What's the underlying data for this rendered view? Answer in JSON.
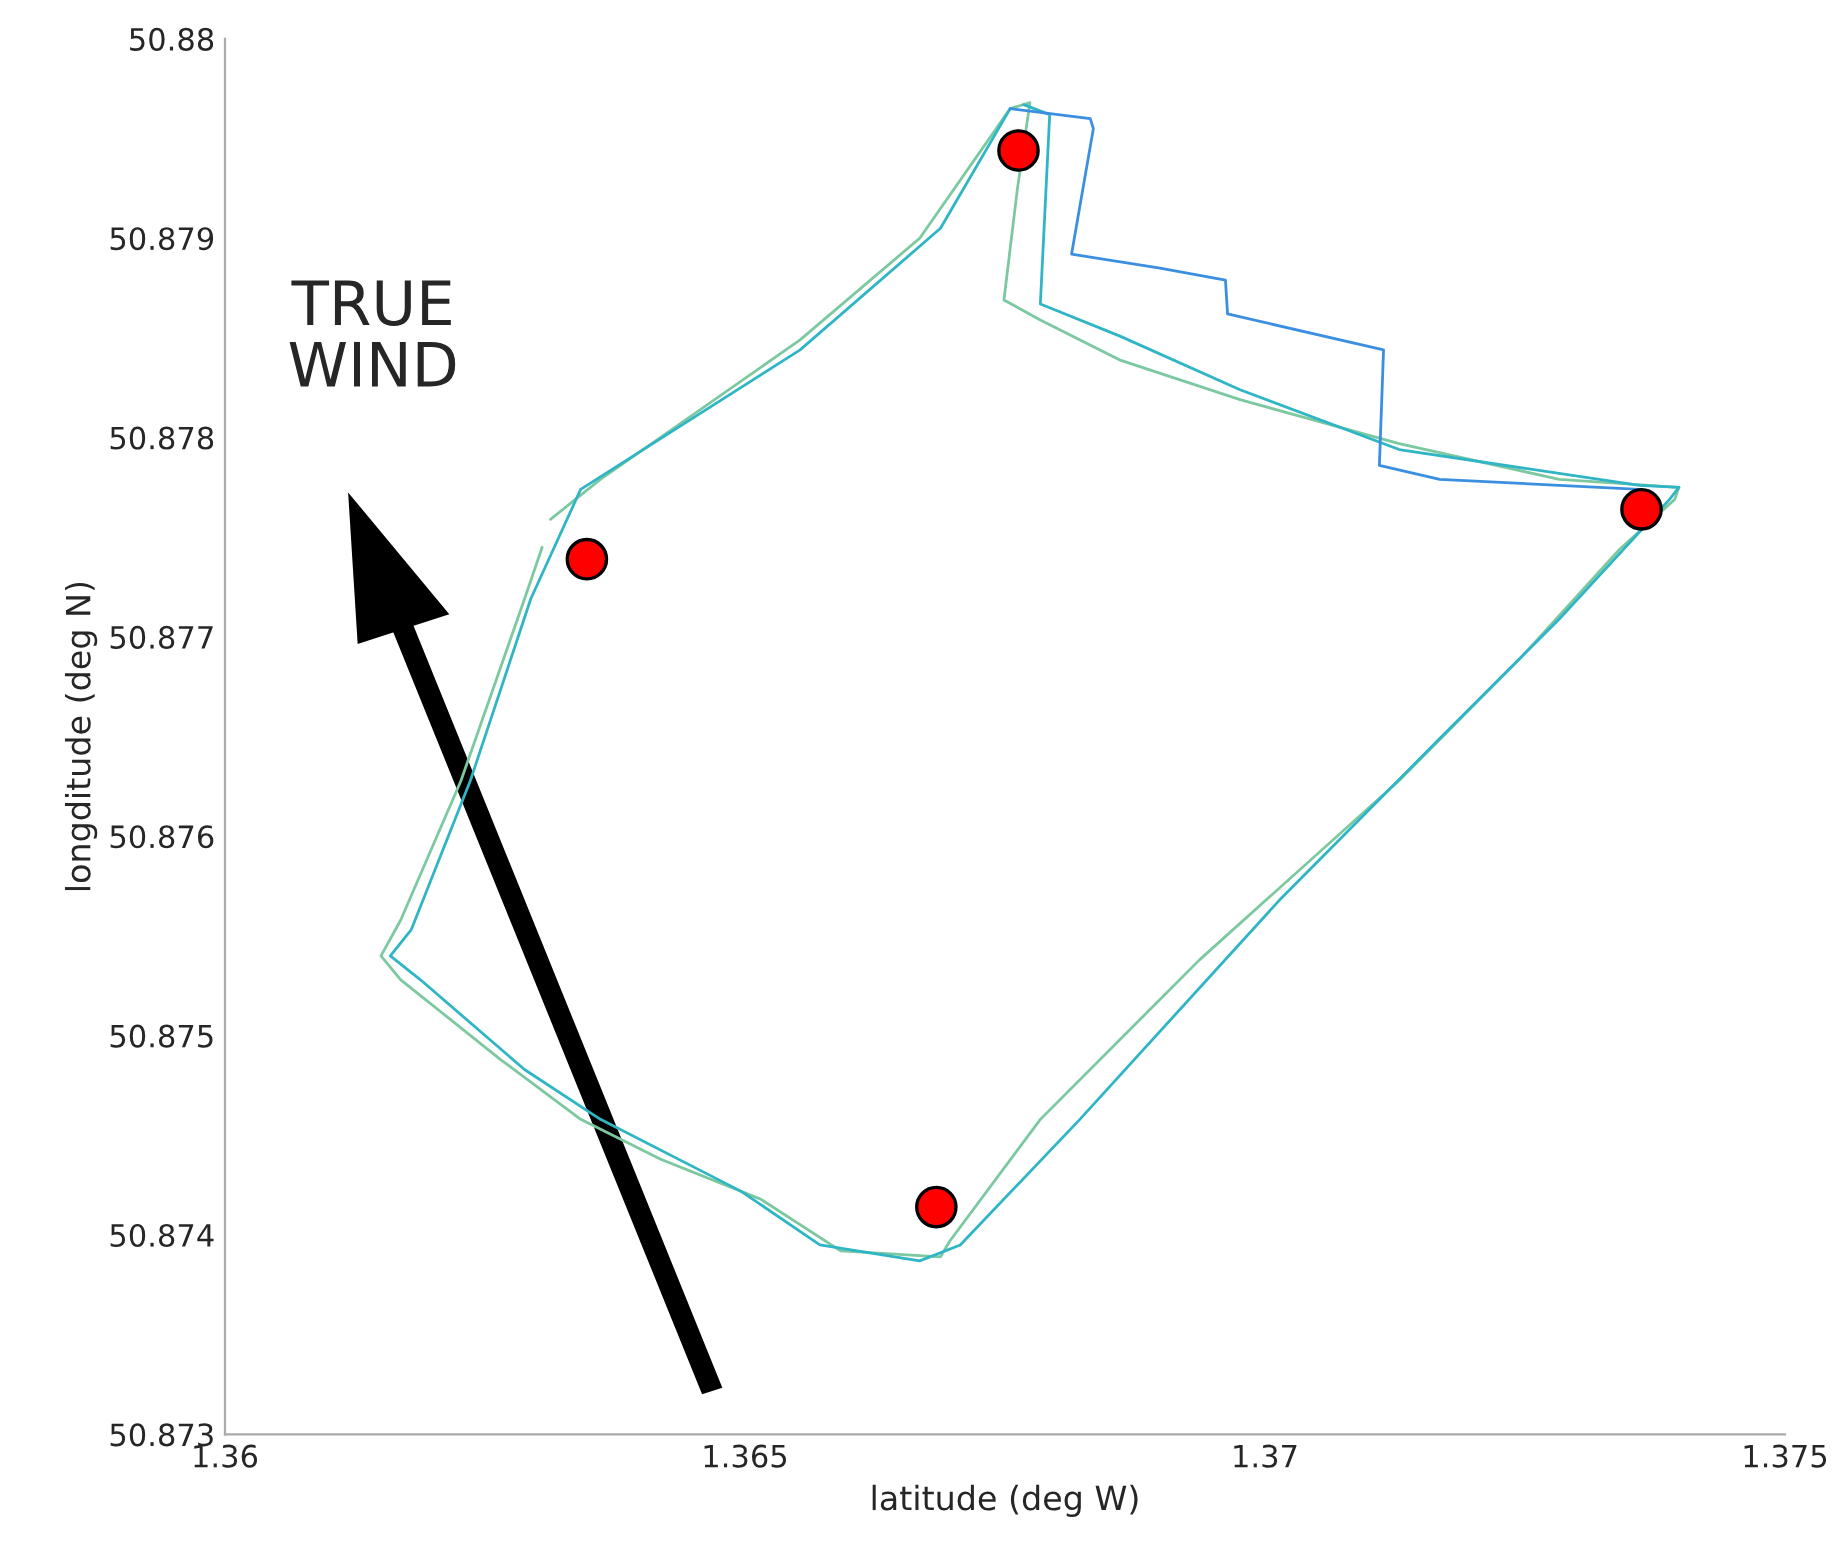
{
  "chart_data": {
    "type": "line",
    "xlabel": "latitude (deg W)",
    "ylabel": "longditude (deg N)",
    "annotations": [
      "TRUE\nWIND"
    ],
    "xlim": [
      1.36,
      1.375
    ],
    "xticks": [
      1.36,
      1.365,
      1.37,
      1.375
    ],
    "ylim": [
      50.873,
      50.88
    ],
    "yticks": [
      50.873,
      50.874,
      50.875,
      50.876,
      50.877,
      50.878,
      50.879,
      50.88
    ],
    "grid": false,
    "line_style": "solid",
    "marker": "none",
    "series": [
      {
        "color": "#7cc8a0",
        "x": [
          1.36313,
          1.36361,
          1.36553,
          1.36668,
          1.36755,
          1.36774,
          1.36762,
          1.36749,
          1.36784,
          1.3686,
          1.36976,
          1.37129,
          1.37283,
          1.37398,
          1.37394,
          1.37341,
          1.37245,
          1.37129,
          1.36937,
          1.36784,
          1.36697,
          1.36688,
          1.36592,
          1.36515,
          1.36419,
          1.36342,
          1.36265,
          1.36169,
          1.3615,
          1.36169,
          1.36227,
          1.36288,
          1.36305
        ],
        "values": [
          50.87759,
          50.87779,
          50.87849,
          50.879,
          50.87965,
          50.87968,
          50.87925,
          50.87869,
          50.87859,
          50.87839,
          50.87819,
          50.87797,
          50.87779,
          50.87775,
          50.87769,
          50.87744,
          50.87689,
          50.87628,
          50.87538,
          50.87458,
          50.87397,
          50.87389,
          50.87392,
          50.87418,
          50.87438,
          50.87458,
          50.87488,
          50.87528,
          50.8754,
          50.87558,
          50.87628,
          50.87719,
          50.87745
        ]
      },
      {
        "color": "#2fb5c5",
        "x": [
          1.36768,
          1.36793,
          1.36784,
          1.3686,
          1.36976,
          1.37129,
          1.3736,
          1.37398,
          1.37389,
          1.37283,
          1.37168,
          1.37014,
          1.36822,
          1.36707,
          1.36668,
          1.36572,
          1.36496,
          1.36361,
          1.36288,
          1.36188,
          1.36159,
          1.36179,
          1.36236,
          1.36294,
          1.36342,
          1.36553,
          1.36688,
          1.36755
        ],
        "values": [
          50.87967,
          50.87962,
          50.87867,
          50.87851,
          50.87824,
          50.87794,
          50.87776,
          50.87775,
          50.87769,
          50.87709,
          50.87649,
          50.87568,
          50.87458,
          50.87395,
          50.87387,
          50.87395,
          50.87422,
          50.87458,
          50.87483,
          50.87528,
          50.8754,
          50.87553,
          50.87628,
          50.87719,
          50.87774,
          50.87844,
          50.87905,
          50.87965
        ]
      },
      {
        "color": "#3a8fe0",
        "x": [
          1.36755,
          1.36832,
          1.36835,
          1.36814,
          1.36899,
          1.36962,
          1.36964,
          1.37114,
          1.3711,
          1.37168,
          1.3736
        ],
        "values": [
          50.87965,
          50.8796,
          50.87955,
          50.87892,
          50.87885,
          50.87879,
          50.87862,
          50.87844,
          50.87786,
          50.87779,
          50.87774
        ]
      },
      {
        "type": "scatter",
        "color": "#ff0000",
        "marker": "circle",
        "x": [
          1.36763,
          1.36348,
          1.37362,
          1.36684
        ],
        "values": [
          50.87944,
          50.87739,
          50.87764,
          50.87414
        ]
      }
    ]
  }
}
